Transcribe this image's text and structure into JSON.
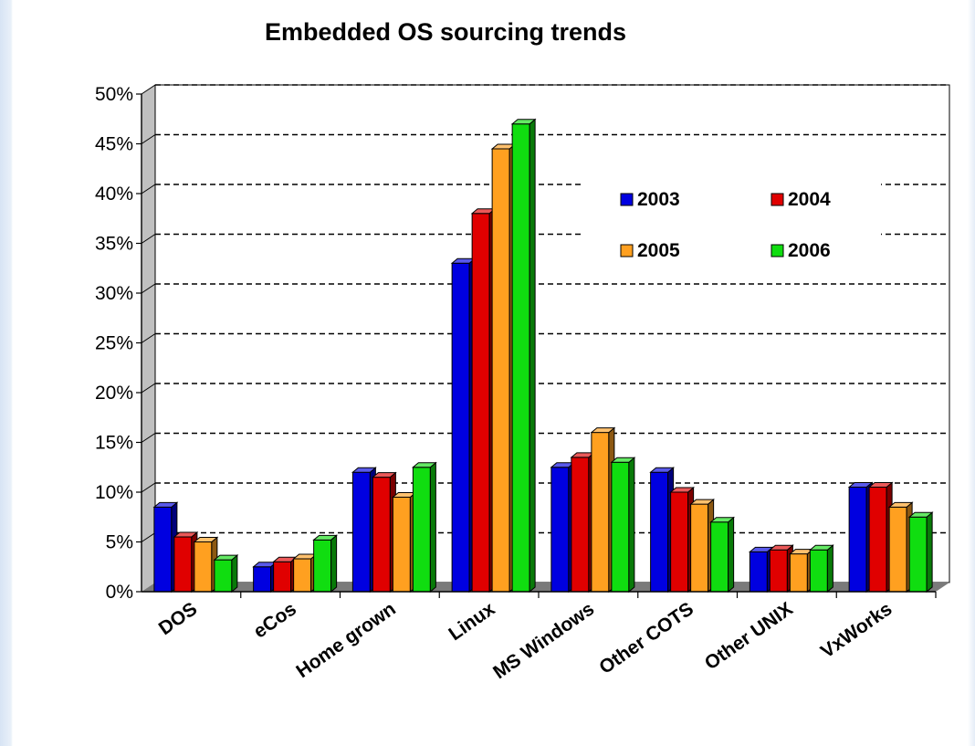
{
  "chart_data": {
    "type": "bar",
    "title": "Embedded OS sourcing trends",
    "categories": [
      "DOS",
      "eCos",
      "Home grown",
      "Linux",
      "MS Windows",
      "Other COTS",
      "Other UNIX",
      "VxWorks"
    ],
    "series": [
      {
        "name": "2003",
        "color": "#0000e0",
        "values": [
          8.5,
          2.5,
          12.0,
          33.0,
          12.5,
          12.0,
          4.0,
          10.5
        ]
      },
      {
        "name": "2004",
        "color": "#e00000",
        "values": [
          5.5,
          3.0,
          11.5,
          38.0,
          13.5,
          10.0,
          4.2,
          10.5
        ]
      },
      {
        "name": "2005",
        "color": "#ffa020",
        "values": [
          5.0,
          3.3,
          9.5,
          44.5,
          16.0,
          8.8,
          3.8,
          8.5
        ]
      },
      {
        "name": "2006",
        "color": "#10dd10",
        "values": [
          3.2,
          5.2,
          12.5,
          47.0,
          13.0,
          7.0,
          4.2,
          7.5
        ]
      }
    ],
    "ylim": [
      0,
      50
    ],
    "yticks": [
      "0%",
      "5%",
      "10%",
      "15%",
      "20%",
      "25%",
      "30%",
      "35%",
      "40%",
      "45%",
      "50%"
    ],
    "grid": true,
    "legend": "top-right"
  }
}
